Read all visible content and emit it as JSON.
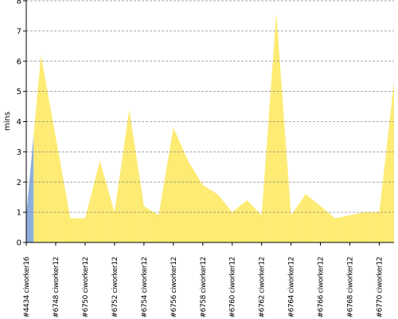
{
  "chart_data": {
    "type": "area",
    "y_label": "mins",
    "categories": [
      "#4434 ciworker16",
      null,
      "#6748 ciworker12",
      null,
      "#6750 ciworker12",
      null,
      "#6752 ciworker12",
      null,
      "#6754 ciworker12",
      null,
      "#6756 ciworker12",
      null,
      "#6758 ciworker12",
      null,
      "#6760 ciworker12",
      null,
      "#6762 ciworker12",
      null,
      "#6764 ciworker12",
      null,
      "#6766 ciworker12",
      null,
      "#6768 ciworker12",
      null,
      "#6770 ciworker12",
      null
    ],
    "values": [
      0.9,
      6.2,
      3.5,
      0.8,
      0.8,
      2.7,
      1.0,
      4.4,
      1.2,
      0.9,
      3.8,
      2.7,
      1.9,
      1.6,
      1.0,
      1.4,
      0.9,
      7.6,
      0.9,
      1.6,
      1.2,
      0.8,
      0.9,
      1.0,
      1.0,
      5.3
    ],
    "colors": [
      "#8eaedd",
      "#fdeb73",
      "#fdeb73",
      "#fdeb73",
      "#fdeb73",
      "#fdeb73",
      "#fdeb73",
      "#fdeb73",
      "#fdeb73",
      "#fdeb73",
      "#fdeb73",
      "#fdeb73",
      "#fdeb73",
      "#fdeb73",
      "#fdeb73",
      "#fdeb73",
      "#fdeb73",
      "#fdeb73",
      "#fdeb73",
      "#fdeb73",
      "#fdeb73",
      "#fdeb73",
      "#fdeb73",
      "#fdeb73",
      "#fdeb73",
      "#fdeb73"
    ],
    "ylim": [
      0,
      8
    ],
    "yticks": [
      0,
      1,
      2,
      3,
      4,
      5,
      6,
      7,
      8
    ],
    "grid": true
  }
}
